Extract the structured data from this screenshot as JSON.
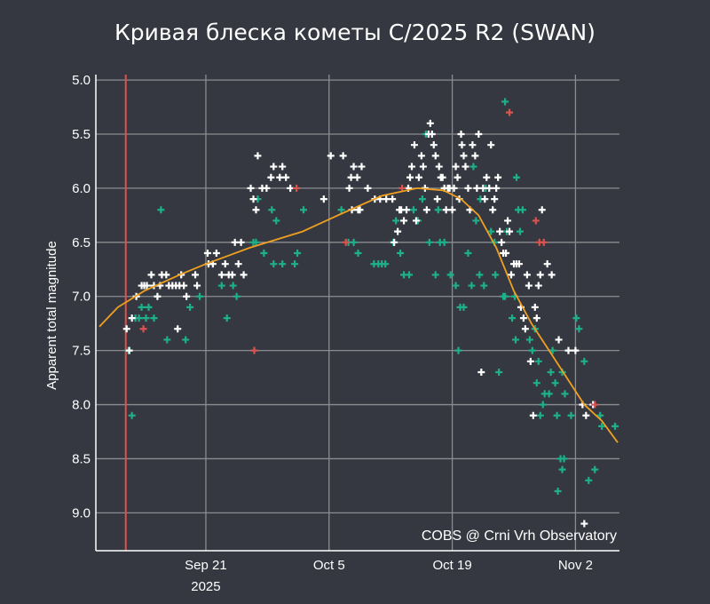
{
  "chart_data": {
    "type": "scatter",
    "title": "Кривая блеска кометы C/2025 R2 (SWAN)",
    "xlabel": "",
    "ylabel": "Apparent total magnitude",
    "credit": "COBS @ Crni Vrh Observatory",
    "x_unit": "day of 2025 (Sep 21 = 0)",
    "xlim": [
      -12.5,
      47
    ],
    "ylim": [
      9.35,
      4.95
    ],
    "y_inverted": true,
    "grid": true,
    "x_ticks": [
      {
        "x": 0,
        "label": "Sep 21",
        "sublabel": "2025"
      },
      {
        "x": 14,
        "label": "Oct 5",
        "sublabel": ""
      },
      {
        "x": 28,
        "label": "Oct 19",
        "sublabel": ""
      },
      {
        "x": 42,
        "label": "Nov 2",
        "sublabel": ""
      }
    ],
    "y_ticks": [
      {
        "y": 5.0,
        "label": "5.0"
      },
      {
        "y": 5.5,
        "label": "5.5"
      },
      {
        "y": 6.0,
        "label": "6.0"
      },
      {
        "y": 6.5,
        "label": "6.5"
      },
      {
        "y": 7.0,
        "label": "7.0"
      },
      {
        "y": 7.5,
        "label": "7.5"
      },
      {
        "y": 8.0,
        "label": "8.0"
      },
      {
        "y": 8.5,
        "label": "8.5"
      },
      {
        "y": 9.0,
        "label": "9.0"
      }
    ],
    "vertical_marker": {
      "x": -9.1,
      "color": "#d9534f"
    },
    "colors": {
      "background": "#353840",
      "axis": "#ffffff",
      "grid": "#8a8c91",
      "trend": "#f0a020",
      "visual": "#ffffff",
      "ccd": "#1db08a",
      "flagged": "#d9534f"
    },
    "trend": {
      "name": "fit",
      "points": [
        [
          -12.1,
          7.28
        ],
        [
          -10,
          7.1
        ],
        [
          -7,
          6.95
        ],
        [
          -3,
          6.8
        ],
        [
          0,
          6.7
        ],
        [
          5,
          6.55
        ],
        [
          11,
          6.4
        ],
        [
          15,
          6.25
        ],
        [
          20,
          6.07
        ],
        [
          24,
          6.0
        ],
        [
          27,
          6.02
        ],
        [
          29,
          6.1
        ],
        [
          31,
          6.25
        ],
        [
          33,
          6.55
        ],
        [
          35,
          6.95
        ],
        [
          37,
          7.25
        ],
        [
          39,
          7.5
        ],
        [
          41,
          7.75
        ],
        [
          43,
          8.0
        ],
        [
          45,
          8.15
        ],
        [
          46.8,
          8.35
        ]
      ]
    },
    "series": [
      {
        "name": "white",
        "values": [
          [
            -9,
            7.3
          ],
          [
            -8.7,
            7.5
          ],
          [
            -8.4,
            7.2
          ],
          [
            -7.9,
            7.0
          ],
          [
            -7.3,
            6.9
          ],
          [
            -7.0,
            6.9
          ],
          [
            -6.7,
            6.9
          ],
          [
            -6.2,
            6.8
          ],
          [
            -5.9,
            6.9
          ],
          [
            -5.5,
            7.0
          ],
          [
            -5.2,
            6.9
          ],
          [
            -5.0,
            6.8
          ],
          [
            -4.5,
            6.8
          ],
          [
            -4.2,
            6.9
          ],
          [
            -3.8,
            6.9
          ],
          [
            -3.4,
            6.9
          ],
          [
            -3.2,
            7.3
          ],
          [
            -3.0,
            6.9
          ],
          [
            -2.8,
            6.8
          ],
          [
            -2.5,
            6.9
          ],
          [
            -2.2,
            7.0
          ],
          [
            -1.2,
            6.8
          ],
          [
            -1.0,
            6.9
          ],
          [
            0.2,
            6.6
          ],
          [
            0.3,
            6.7
          ],
          [
            0.8,
            6.7
          ],
          [
            1.2,
            6.6
          ],
          [
            1.8,
            6.8
          ],
          [
            2.2,
            6.7
          ],
          [
            2.6,
            6.8
          ],
          [
            3.0,
            6.8
          ],
          [
            3.3,
            6.5
          ],
          [
            3.7,
            6.7
          ],
          [
            4.0,
            6.5
          ],
          [
            4.3,
            6.8
          ],
          [
            5.1,
            6.0
          ],
          [
            5.4,
            6.1
          ],
          [
            5.7,
            6.2
          ],
          [
            5.9,
            5.7
          ],
          [
            6.4,
            6.0
          ],
          [
            6.9,
            6.0
          ],
          [
            7.4,
            5.9
          ],
          [
            7.7,
            5.8
          ],
          [
            8.4,
            5.9
          ],
          [
            8.7,
            5.8
          ],
          [
            9.1,
            5.9
          ],
          [
            9.6,
            6.0
          ],
          [
            13.4,
            6.1
          ],
          [
            14.2,
            5.7
          ],
          [
            15.6,
            5.7
          ],
          [
            16.3,
            6.0
          ],
          [
            16.5,
            5.9
          ],
          [
            16.6,
            6.2
          ],
          [
            16.8,
            5.8
          ],
          [
            17.2,
            5.9
          ],
          [
            17.5,
            6.2
          ],
          [
            17.7,
            5.8
          ],
          [
            17.3,
            6.2
          ],
          [
            18.4,
            6.0
          ],
          [
            19.2,
            6.1
          ],
          [
            19.8,
            6.1
          ],
          [
            20.5,
            6.1
          ],
          [
            21.2,
            6.1
          ],
          [
            21.4,
            6.5
          ],
          [
            21.8,
            6.4
          ],
          [
            22.0,
            6.2
          ],
          [
            22.2,
            6.2
          ],
          [
            22.5,
            6.3
          ],
          [
            22.8,
            6.2
          ],
          [
            23.0,
            6.0
          ],
          [
            23.2,
            5.9
          ],
          [
            23.4,
            5.8
          ],
          [
            23.7,
            5.6
          ],
          [
            23.9,
            6.3
          ],
          [
            24.2,
            5.9
          ],
          [
            24.5,
            5.7
          ],
          [
            24.7,
            5.8
          ],
          [
            24.9,
            6.0
          ],
          [
            25.1,
            6.2
          ],
          [
            25.3,
            5.5
          ],
          [
            25.5,
            5.4
          ],
          [
            25.7,
            5.5
          ],
          [
            25.9,
            5.6
          ],
          [
            26.1,
            5.7
          ],
          [
            26.3,
            6.1
          ],
          [
            26.5,
            5.8
          ],
          [
            26.7,
            5.9
          ],
          [
            26.9,
            5.9
          ],
          [
            27.1,
            6.0
          ],
          [
            27.3,
            6.2
          ],
          [
            27.5,
            6.0
          ],
          [
            27.7,
            6.0
          ],
          [
            28.0,
            6.2
          ],
          [
            28.2,
            6.0
          ],
          [
            28.4,
            5.8
          ],
          [
            28.6,
            5.9
          ],
          [
            28.8,
            6.1
          ],
          [
            29.0,
            5.5
          ],
          [
            29.1,
            5.6
          ],
          [
            29.3,
            5.7
          ],
          [
            29.5,
            5.8
          ],
          [
            29.8,
            6.0
          ],
          [
            30.0,
            6.2
          ],
          [
            30.3,
            5.6
          ],
          [
            30.6,
            5.7
          ],
          [
            30.8,
            6.0
          ],
          [
            31.0,
            5.5
          ],
          [
            31.3,
            7.7
          ],
          [
            31.5,
            6.0
          ],
          [
            31.7,
            6.1
          ],
          [
            31.9,
            5.9
          ],
          [
            32.2,
            6.0
          ],
          [
            32.4,
            5.6
          ],
          [
            32.6,
            6.2
          ],
          [
            32.8,
            6.1
          ],
          [
            33.0,
            6.0
          ],
          [
            33.2,
            5.9
          ],
          [
            33.4,
            6.4
          ],
          [
            33.6,
            6.5
          ],
          [
            33.8,
            6.6
          ],
          [
            34.1,
            6.6
          ],
          [
            34.3,
            6.3
          ],
          [
            34.5,
            6.4
          ],
          [
            34.7,
            6.8
          ],
          [
            35.0,
            6.7
          ],
          [
            35.3,
            6.7
          ],
          [
            35.6,
            6.7
          ],
          [
            35.8,
            7.1
          ],
          [
            36.1,
            7.2
          ],
          [
            36.3,
            7.3
          ],
          [
            36.5,
            6.8
          ],
          [
            36.7,
            6.9
          ],
          [
            36.9,
            7.6
          ],
          [
            37.2,
            8.1
          ],
          [
            37.4,
            7.1
          ],
          [
            37.6,
            7.2
          ],
          [
            37.8,
            6.9
          ],
          [
            38.0,
            6.8
          ],
          [
            38.2,
            6.2
          ],
          [
            38.8,
            6.7
          ],
          [
            39.3,
            6.8
          ],
          [
            40.1,
            7.4
          ],
          [
            41.2,
            7.5
          ],
          [
            42.0,
            7.5
          ],
          [
            42.8,
            8.0
          ],
          [
            43.2,
            8.1
          ],
          [
            44.0,
            8.0
          ],
          [
            43.0,
            9.1
          ]
        ]
      },
      {
        "name": "green",
        "values": [
          [
            -8.8,
            7.5
          ],
          [
            -8.4,
            8.1
          ],
          [
            -8.0,
            7.2
          ],
          [
            -7.6,
            7.2
          ],
          [
            -7.3,
            7.1
          ],
          [
            -6.8,
            7.2
          ],
          [
            -6.5,
            7.1
          ],
          [
            -5.9,
            7.2
          ],
          [
            -5.1,
            6.2
          ],
          [
            -4.4,
            7.4
          ],
          [
            -2.3,
            7.4
          ],
          [
            -1.8,
            7.1
          ],
          [
            -0.7,
            7.0
          ],
          [
            1.8,
            6.9
          ],
          [
            2.4,
            7.2
          ],
          [
            3.1,
            6.9
          ],
          [
            3.5,
            7.0
          ],
          [
            5.4,
            6.5
          ],
          [
            5.7,
            6.5
          ],
          [
            5.9,
            6.1
          ],
          [
            6.6,
            6.6
          ],
          [
            7.5,
            6.2
          ],
          [
            7.7,
            6.7
          ],
          [
            8.0,
            6.3
          ],
          [
            8.7,
            6.7
          ],
          [
            10.1,
            6.7
          ],
          [
            10.4,
            6.6
          ],
          [
            11.1,
            6.2
          ],
          [
            15.4,
            6.2
          ],
          [
            16.2,
            6.5
          ],
          [
            16.8,
            6.5
          ],
          [
            17.3,
            6.6
          ],
          [
            19.1,
            6.7
          ],
          [
            19.6,
            6.7
          ],
          [
            20.0,
            6.7
          ],
          [
            20.4,
            6.7
          ],
          [
            21.3,
            6.5
          ],
          [
            21.6,
            6.3
          ],
          [
            22.1,
            6.6
          ],
          [
            22.5,
            6.8
          ],
          [
            23.1,
            6.8
          ],
          [
            23.6,
            6.2
          ],
          [
            24.1,
            6.3
          ],
          [
            24.6,
            6.1
          ],
          [
            25.0,
            5.5
          ],
          [
            25.4,
            6.5
          ],
          [
            26.1,
            6.8
          ],
          [
            26.4,
            6.2
          ],
          [
            26.6,
            6.5
          ],
          [
            27.1,
            6.5
          ],
          [
            27.8,
            6.8
          ],
          [
            28.4,
            6.9
          ],
          [
            28.7,
            7.5
          ],
          [
            28.9,
            7.1
          ],
          [
            29.3,
            7.1
          ],
          [
            29.8,
            6.6
          ],
          [
            30.2,
            6.9
          ],
          [
            30.4,
            5.8
          ],
          [
            30.7,
            6.3
          ],
          [
            31.1,
            6.8
          ],
          [
            31.2,
            6.1
          ],
          [
            31.6,
            6.9
          ],
          [
            31.8,
            6.0
          ],
          [
            32.4,
            6.4
          ],
          [
            32.8,
            6.5
          ],
          [
            32.9,
            6.8
          ],
          [
            33.3,
            7.7
          ],
          [
            33.8,
            7.0
          ],
          [
            34.0,
            7.0
          ],
          [
            34.2,
            6.4
          ],
          [
            34.8,
            7.2
          ],
          [
            35.1,
            7.0
          ],
          [
            35.2,
            7.4
          ],
          [
            35.3,
            5.9
          ],
          [
            35.5,
            6.2
          ],
          [
            35.7,
            6.4
          ],
          [
            36.0,
            6.2
          ],
          [
            36.8,
            7.4
          ],
          [
            37.1,
            7.5
          ],
          [
            37.4,
            7.3
          ],
          [
            37.6,
            7.8
          ],
          [
            37.8,
            7.6
          ],
          [
            38.0,
            8.1
          ],
          [
            38.3,
            8.0
          ],
          [
            38.5,
            7.9
          ],
          [
            39.0,
            7.9
          ],
          [
            39.2,
            7.7
          ],
          [
            39.4,
            7.5
          ],
          [
            39.7,
            7.8
          ],
          [
            40.0,
            8.8
          ],
          [
            40.3,
            8.5
          ],
          [
            40.5,
            8.6
          ],
          [
            40.7,
            8.5
          ],
          [
            39.9,
            8.1
          ],
          [
            40.5,
            7.7
          ],
          [
            40.8,
            7.9
          ],
          [
            41.5,
            8.1
          ],
          [
            42.1,
            7.2
          ],
          [
            42.4,
            7.3
          ],
          [
            43.0,
            7.6
          ],
          [
            43.5,
            8.7
          ],
          [
            44.2,
            8.6
          ],
          [
            44.8,
            8.1
          ],
          [
            45.0,
            8.2
          ],
          [
            46.5,
            8.2
          ],
          [
            34.0,
            5.2
          ]
        ]
      },
      {
        "name": "red",
        "values": [
          [
            -7.1,
            7.3
          ],
          [
            5.5,
            7.5
          ],
          [
            10.3,
            6.0
          ],
          [
            15.9,
            6.5
          ],
          [
            22.3,
            6.0
          ],
          [
            34.5,
            5.3
          ],
          [
            37.9,
            6.5
          ],
          [
            37.5,
            6.3
          ],
          [
            38.4,
            6.5
          ],
          [
            44.2,
            8.0
          ]
        ]
      }
    ]
  }
}
